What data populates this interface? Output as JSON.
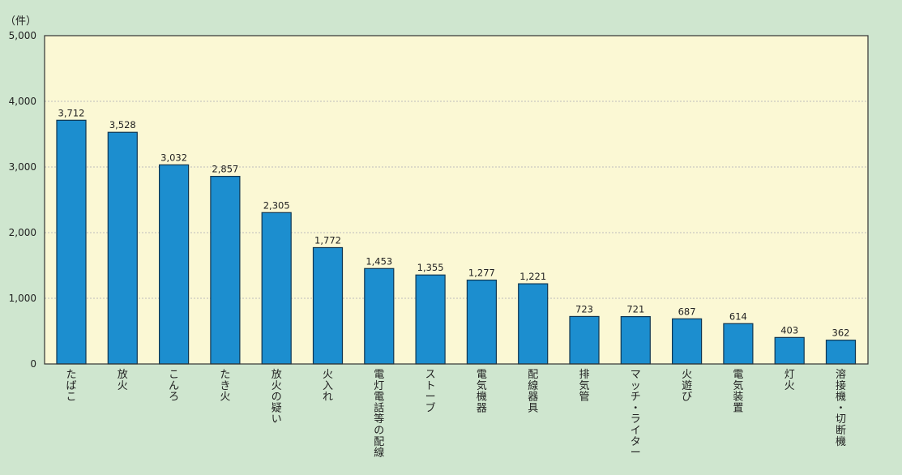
{
  "chart_data": {
    "type": "bar",
    "unit_label": "（件）",
    "categories": [
      "たばこ",
      "放火",
      "こんろ",
      "たき火",
      "放火の疑い",
      "火入れ",
      "電灯電話等の配線",
      "ストーブ",
      "電気機器",
      "配線器具",
      "排気管",
      "マッチ・ライター",
      "火遊び",
      "電気装置",
      "灯火",
      "溶接機・切断機"
    ],
    "values": [
      3712,
      3528,
      3032,
      2857,
      2305,
      1772,
      1453,
      1355,
      1277,
      1221,
      723,
      721,
      687,
      614,
      403,
      362
    ],
    "value_labels": [
      "3,712",
      "3,528",
      "3,032",
      "2,857",
      "2,305",
      "1,772",
      "1,453",
      "1,355",
      "1,277",
      "1,221",
      "723",
      "721",
      "687",
      "614",
      "403",
      "362"
    ],
    "ylim": [
      0,
      5000
    ],
    "y_ticks": [
      {
        "value": 0,
        "label": "0"
      },
      {
        "value": 1000,
        "label": "1,000"
      },
      {
        "value": 2000,
        "label": "2,000"
      },
      {
        "value": 3000,
        "label": "3,000"
      },
      {
        "value": 4000,
        "label": "4,000"
      },
      {
        "value": 5000,
        "label": "5,000"
      }
    ],
    "grid": true,
    "title": "",
    "xlabel": "",
    "ylabel": ""
  },
  "colors": {
    "background": "#cfe6cf",
    "plot_area": "#fbf8d4",
    "bar_fill": "#1c8ecf",
    "bar_stroke": "#0f3550",
    "grid": "#bdbdbd",
    "axis": "#333333"
  }
}
